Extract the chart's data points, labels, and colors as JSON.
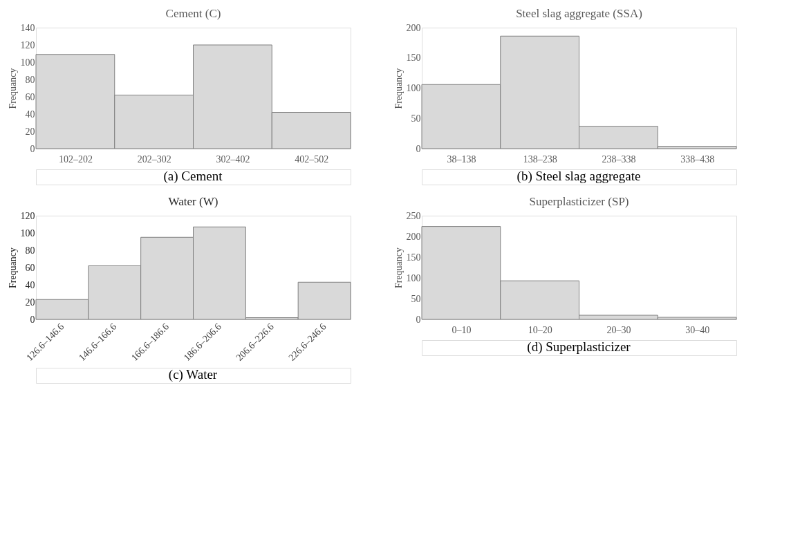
{
  "chart_data": [
    {
      "type": "bar",
      "title": "Cement (C)",
      "ylabel": "Frequancy",
      "categories": [
        "102–202",
        "202–302",
        "302–402",
        "402–502"
      ],
      "values": [
        109,
        62,
        120,
        42
      ],
      "color": "#d9d9d9",
      "ylim": [
        0,
        140
      ],
      "yticks": [
        0,
        20,
        40,
        60,
        80,
        100,
        120,
        140
      ],
      "annotations": [
        "(a) Cement"
      ]
    },
    {
      "type": "bar",
      "title": "Steel slag aggregate (SSA)",
      "ylabel": "Frequancy",
      "categories": [
        "38–138",
        "138–238",
        "238–338",
        "338–438"
      ],
      "values": [
        106,
        186,
        37,
        4
      ],
      "color": "#d9d9d9",
      "ylim": [
        0,
        200
      ],
      "yticks": [
        0,
        50,
        100,
        150,
        200
      ],
      "annotations": [
        "(b) Steel slag aggregate"
      ]
    },
    {
      "type": "bar",
      "title": "Water (W)",
      "ylabel": "Frequancy",
      "categories": [
        "126.6–146.6",
        "146.6–166.6",
        "166.6–186.6",
        "186.6–206.6",
        "206.6–226.6",
        "226.6–246.6"
      ],
      "values": [
        23,
        62,
        95,
        107,
        2,
        43
      ],
      "color": "#d9d9d9",
      "ylim": [
        0,
        120
      ],
      "yticks": [
        0,
        20,
        40,
        60,
        80,
        100,
        120
      ],
      "annotations": [
        "(c) Water"
      ]
    },
    {
      "type": "bar",
      "title": "Superplasticizer (SP)",
      "ylabel": "Frequancy",
      "categories": [
        "0–10",
        "10–20",
        "20–30",
        "30–40"
      ],
      "values": [
        224,
        93,
        10,
        5
      ],
      "color": "#d9d9d9",
      "ylim": [
        0,
        250
      ],
      "yticks": [
        0,
        50,
        100,
        150,
        200,
        250
      ],
      "annotations": [
        "(d) Superplasticizer"
      ]
    }
  ]
}
